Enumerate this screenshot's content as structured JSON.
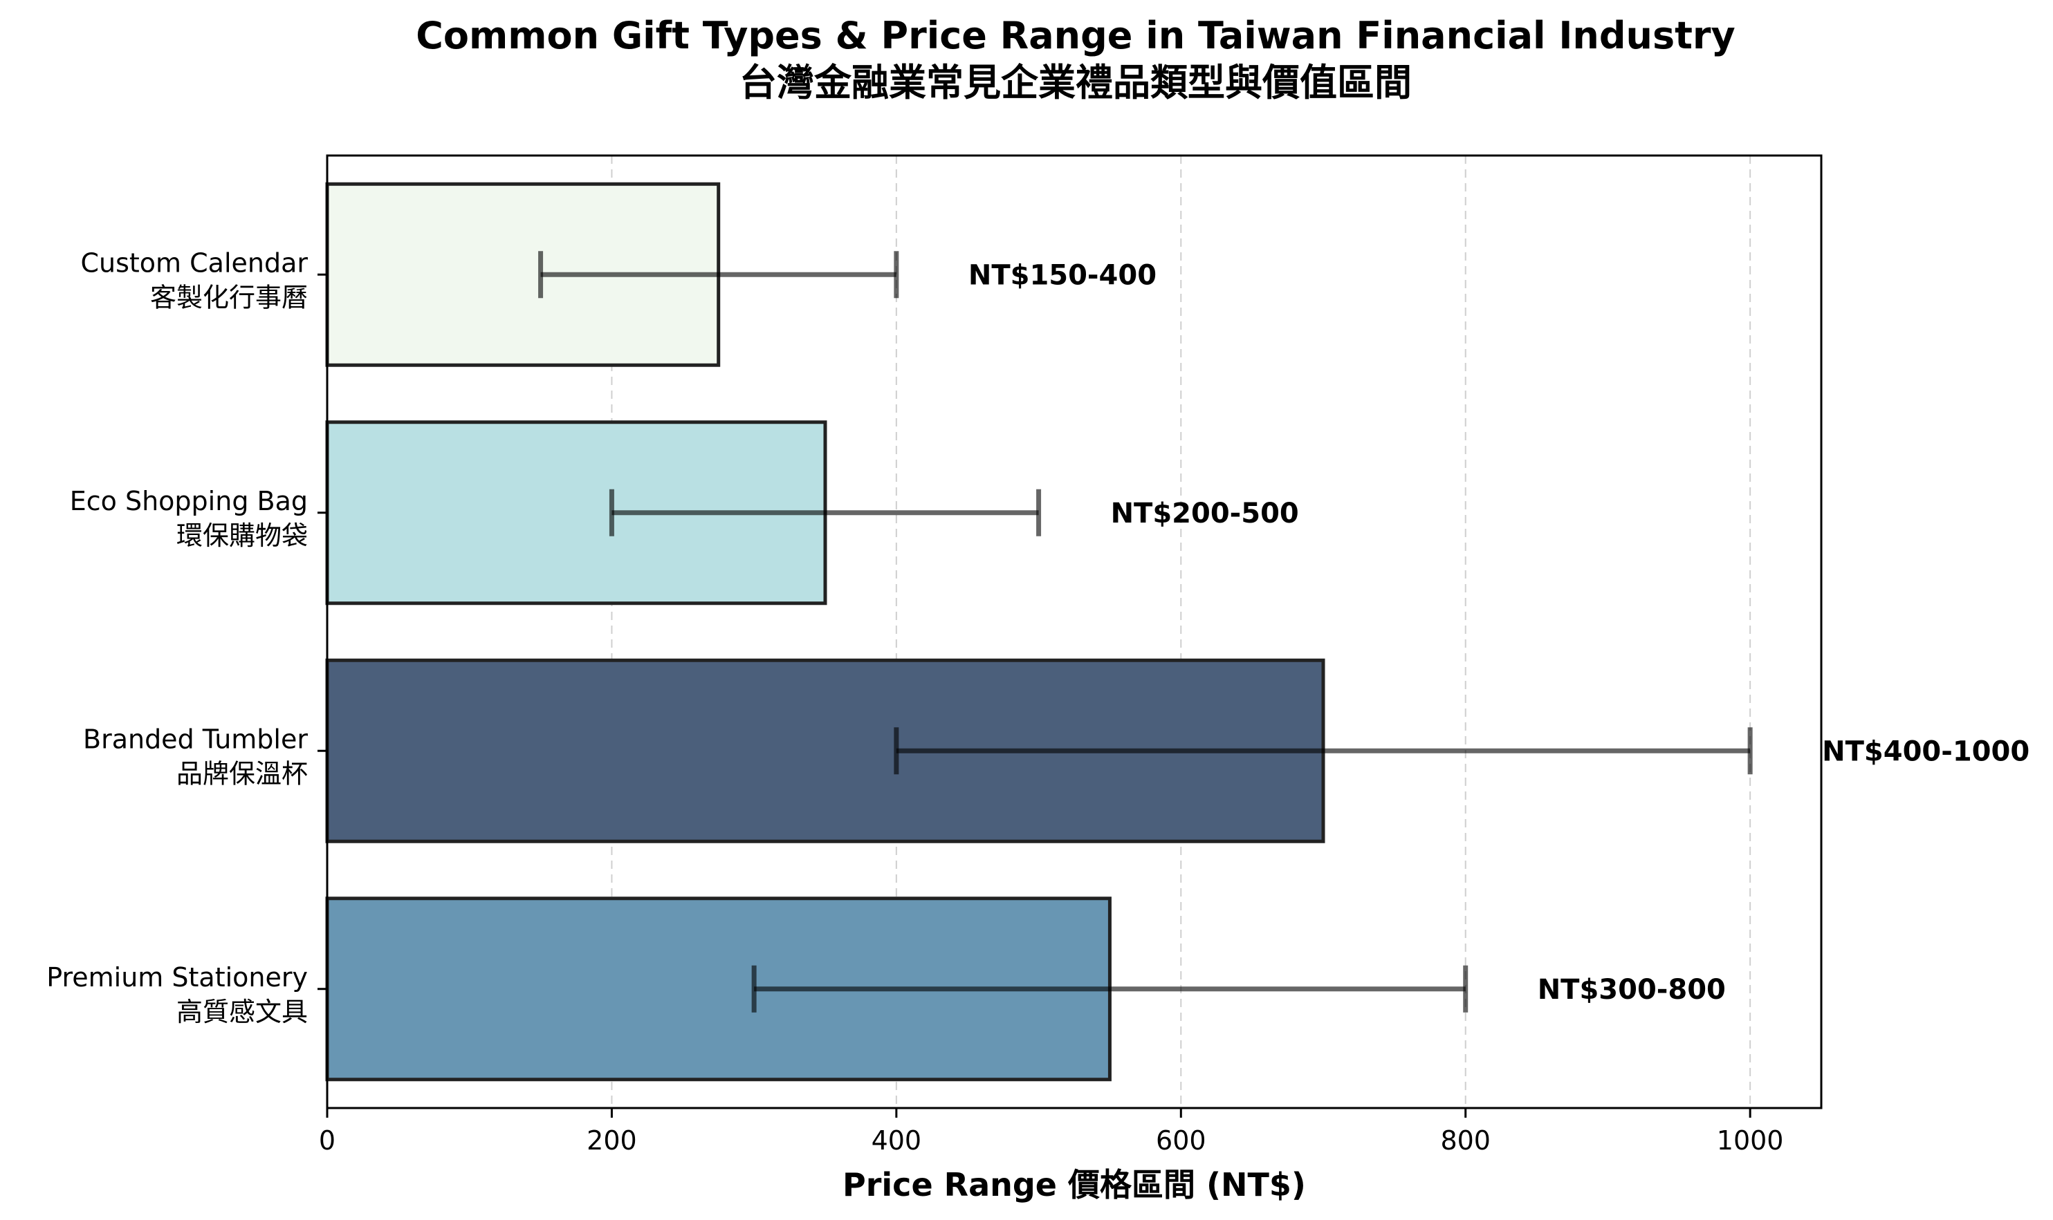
{
  "chart_data": {
    "type": "bar",
    "orientation": "horizontal",
    "title": "Common Gift Types & Price Range in Taiwan Financial Industry",
    "subtitle": "台灣金融業常見企業禮品類型與價值區間",
    "xlabel": "Price Range 價格區間 (NT$)",
    "ylabel": "",
    "xlim": [
      0,
      1050
    ],
    "xticks": [
      0,
      200,
      400,
      600,
      800,
      1000
    ],
    "grid": "x-dashed",
    "categories": [
      {
        "en": "Custom Calendar",
        "zh": "客製化行事曆"
      },
      {
        "en": "Eco Shopping Bag",
        "zh": "環保購物袋"
      },
      {
        "en": "Branded Tumbler",
        "zh": "品牌保溫杯"
      },
      {
        "en": "Premium Stationery",
        "zh": "高質感文具"
      }
    ],
    "values": [
      275,
      350,
      700,
      550
    ],
    "ranges": [
      [
        150,
        400
      ],
      [
        200,
        500
      ],
      [
        400,
        1000
      ],
      [
        300,
        800
      ]
    ],
    "range_labels": [
      "NT$150-400",
      "NT$200-500",
      "NT$400-1000",
      "NT$300-800"
    ],
    "colors": [
      "#f1f8ef",
      "#b9e0e3",
      "#4b5f7b",
      "#6896b3"
    ]
  }
}
